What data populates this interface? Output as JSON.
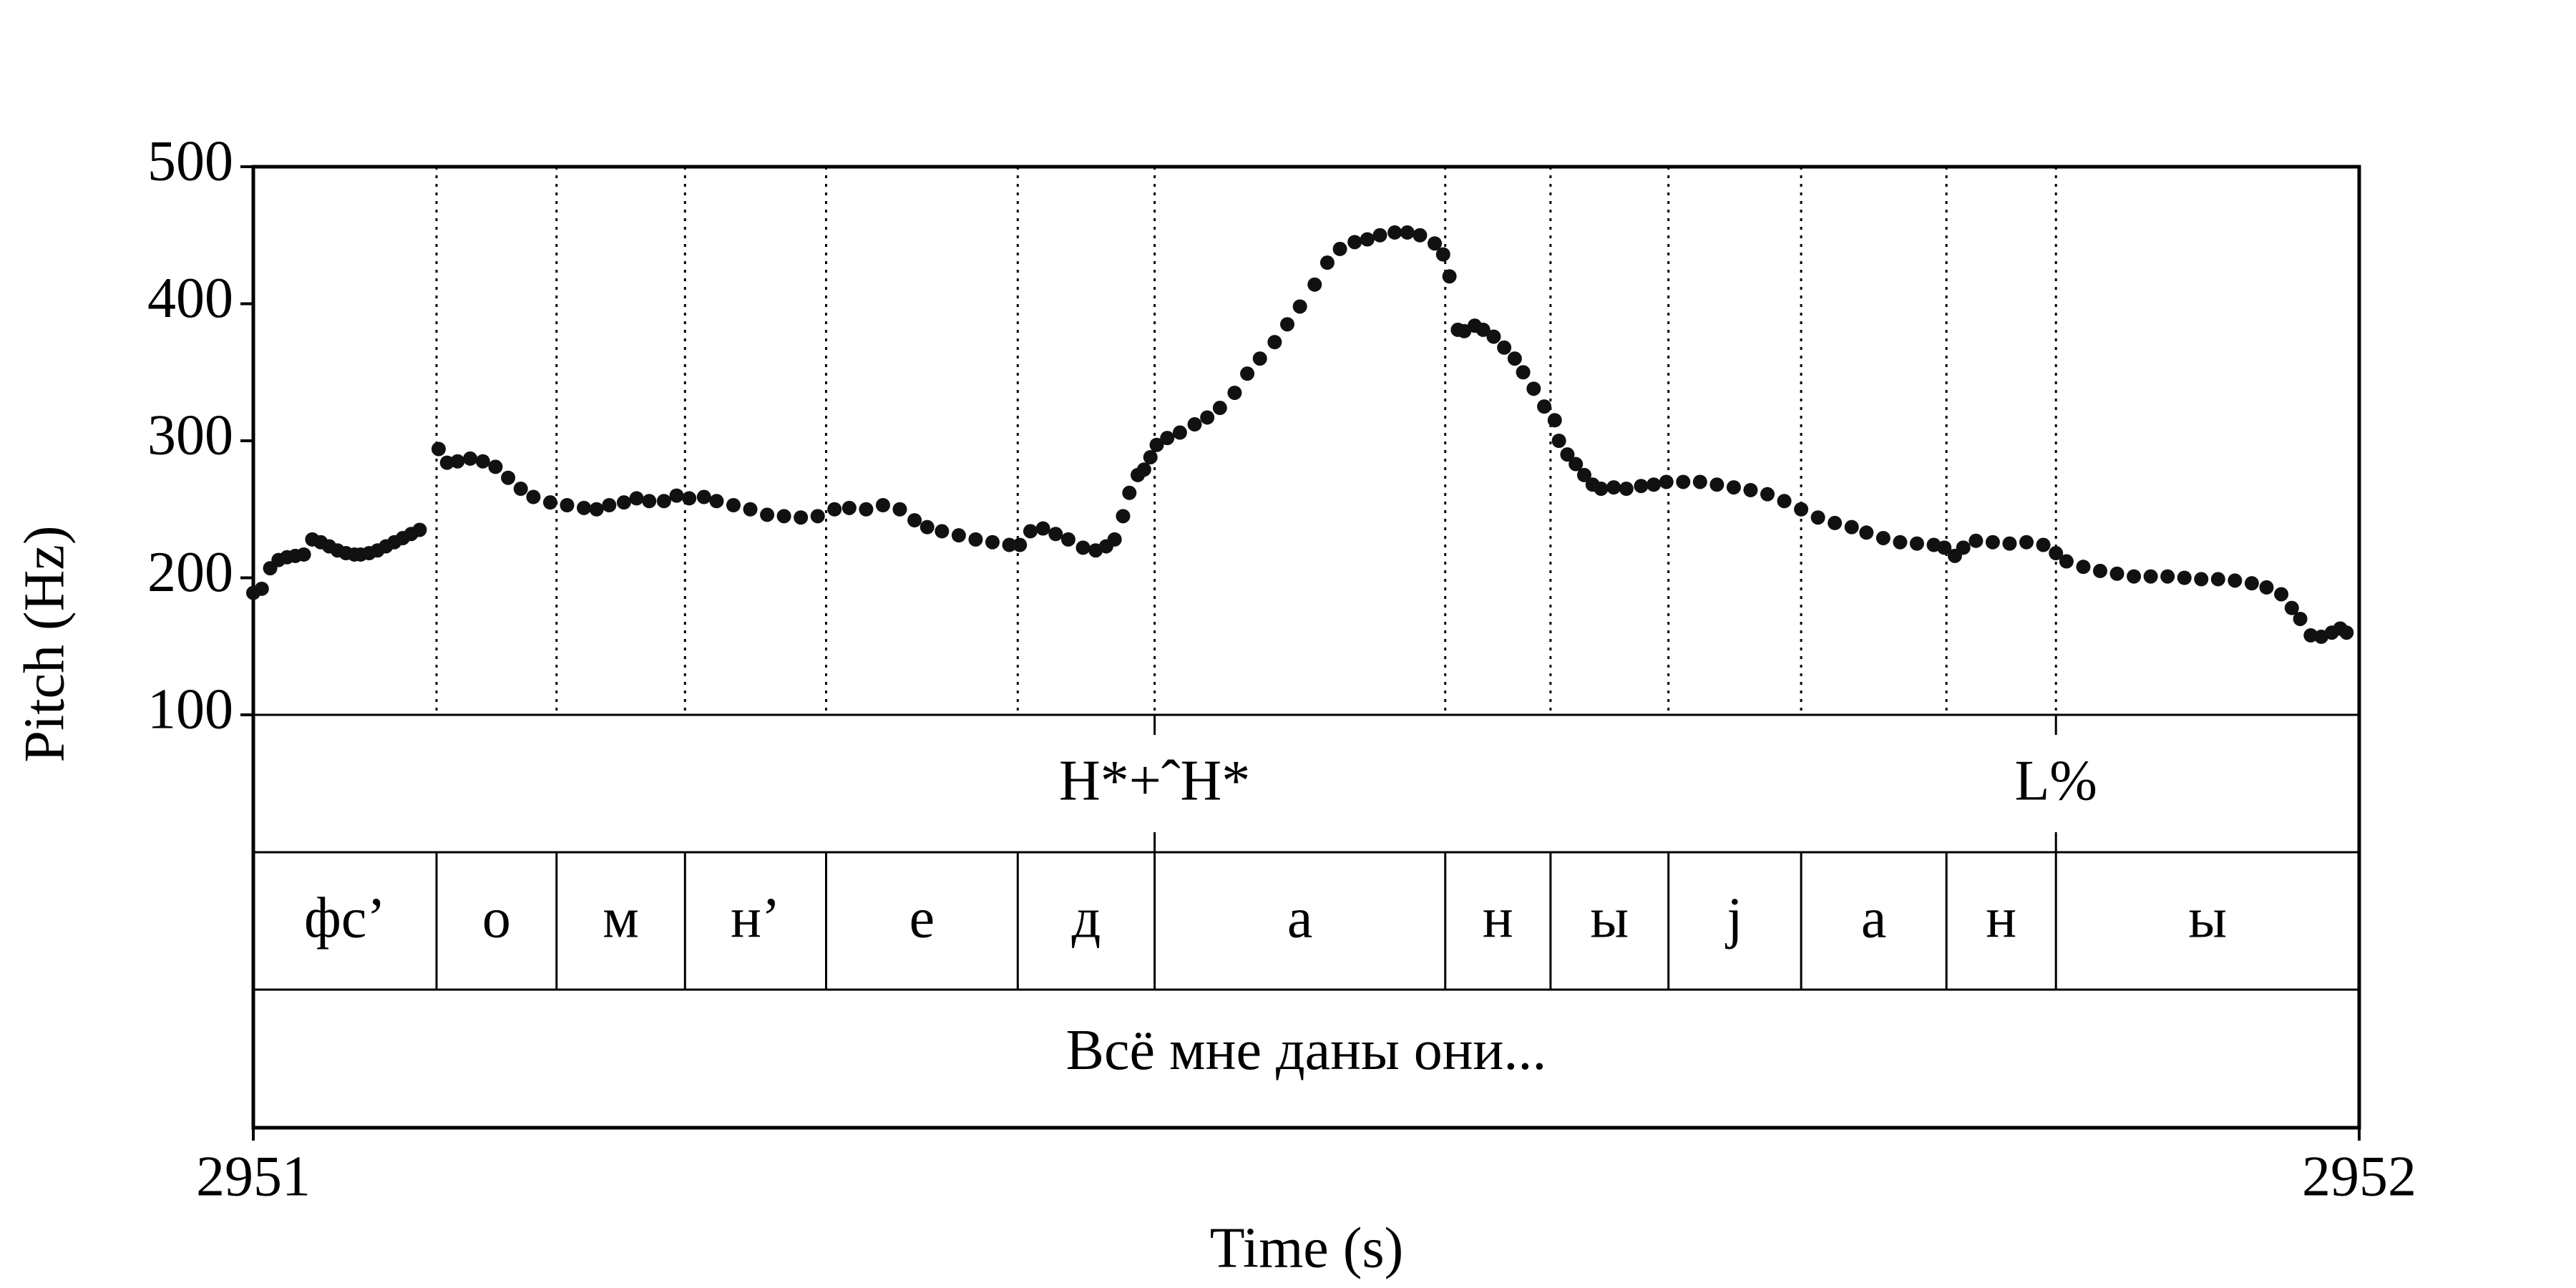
{
  "chart_data": {
    "type": "scatter",
    "y_label": "Pitch (Hz)",
    "x_label": "Time (s)",
    "xlim": [
      2951,
      2952
    ],
    "xticks": [
      2951,
      2952
    ],
    "ylim": [
      100,
      500
    ],
    "yticks": [
      100,
      200,
      300,
      400,
      500
    ],
    "color": "#111111",
    "x": [
      2951.0,
      2951.004,
      2951.008,
      2951.012,
      2951.016,
      2951.02,
      2951.024,
      2951.028,
      2951.032,
      2951.036,
      2951.04,
      2951.044,
      2951.048,
      2951.051,
      2951.055,
      2951.059,
      2951.063,
      2951.067,
      2951.071,
      2951.075,
      2951.079,
      2951.088,
      2951.092,
      2951.097,
      2951.103,
      2951.109,
      2951.115,
      2951.121,
      2951.127,
      2951.133,
      2951.141,
      2951.149,
      2951.157,
      2951.163,
      2951.169,
      2951.176,
      2951.182,
      2951.188,
      2951.195,
      2951.201,
      2951.207,
      2951.214,
      2951.22,
      2951.228,
      2951.236,
      2951.244,
      2951.252,
      2951.26,
      2951.268,
      2951.276,
      2951.283,
      2951.291,
      2951.299,
      2951.307,
      2951.314,
      2951.32,
      2951.327,
      2951.335,
      2951.343,
      2951.351,
      2951.359,
      2951.364,
      2951.369,
      2951.375,
      2951.381,
      2951.387,
      2951.394,
      2951.4,
      2951.405,
      2951.409,
      2951.413,
      2951.416,
      2951.42,
      2951.423,
      2951.426,
      2951.429,
      2951.434,
      2951.44,
      2951.447,
      2951.453,
      2951.459,
      2951.466,
      2951.472,
      2951.478,
      2951.485,
      2951.491,
      2951.497,
      2951.504,
      2951.51,
      2951.516,
      2951.523,
      2951.529,
      2951.535,
      2951.542,
      2951.548,
      2951.554,
      2951.561,
      2951.565,
      2951.568,
      2951.572,
      2951.575,
      2951.58,
      2951.584,
      2951.589,
      2951.594,
      2951.599,
      2951.603,
      2951.608,
      2951.613,
      2951.618,
      2951.62,
      2951.624,
      2951.628,
      2951.632,
      2951.636,
      2951.64,
      2951.646,
      2951.652,
      2951.659,
      2951.665,
      2951.671,
      2951.679,
      2951.687,
      2951.695,
      2951.703,
      2951.711,
      2951.719,
      2951.727,
      2951.735,
      2951.743,
      2951.751,
      2951.759,
      2951.766,
      2951.774,
      2951.782,
      2951.79,
      2951.798,
      2951.803,
      2951.808,
      2951.812,
      2951.818,
      2951.826,
      2951.834,
      2951.842,
      2951.85,
      2951.856,
      2951.861,
      2951.869,
      2951.877,
      2951.885,
      2951.893,
      2951.901,
      2951.909,
      2951.917,
      2951.925,
      2951.933,
      2951.941,
      2951.949,
      2951.956,
      2951.963,
      2951.968,
      2951.972,
      2951.977,
      2951.982,
      2951.987,
      2951.991,
      2951.994
    ],
    "values": [
      189,
      192,
      207,
      213,
      215,
      216,
      217,
      228,
      226,
      223,
      220,
      218,
      217,
      217,
      218,
      220,
      223,
      226,
      229,
      232,
      235,
      294,
      284,
      285,
      287,
      285,
      281,
      273,
      265,
      259,
      255,
      253,
      251,
      250,
      253,
      255,
      258,
      256,
      256,
      260,
      258,
      259,
      256,
      253,
      250,
      246,
      245,
      244,
      245,
      250,
      251,
      250,
      253,
      250,
      242,
      237,
      234,
      231,
      228,
      226,
      224,
      224,
      234,
      236,
      232,
      228,
      222,
      220,
      223,
      228,
      245,
      262,
      275,
      279,
      288,
      297,
      302,
      306,
      312,
      317,
      324,
      335,
      349,
      360,
      372,
      385,
      398,
      414,
      430,
      440,
      445,
      447,
      450,
      452,
      452,
      450,
      444,
      436,
      420,
      381,
      380,
      384,
      381,
      376,
      368,
      360,
      350,
      338,
      325,
      315,
      300,
      290,
      283,
      275,
      268,
      265,
      266,
      265,
      267,
      268,
      270,
      270,
      270,
      268,
      266,
      264,
      261,
      256,
      250,
      244,
      240,
      237,
      233,
      229,
      226,
      225,
      224,
      222,
      216,
      222,
      227,
      226,
      225,
      226,
      224,
      218,
      212,
      208,
      205,
      203,
      201,
      201,
      201,
      200,
      199,
      199,
      198,
      196,
      193,
      188,
      178,
      170,
      158,
      157,
      160,
      163,
      160
    ],
    "tone_tier": {
      "times": [
        2951.428,
        2951.856
      ],
      "labels": [
        "H*+ˆH*",
        "L%"
      ]
    },
    "segment_tier": {
      "boundaries": [
        2951,
        2951.087,
        2951.144,
        2951.205,
        2951.272,
        2951.363,
        2951.428,
        2951.566,
        2951.616,
        2951.672,
        2951.735,
        2951.804,
        2951.856,
        2952
      ],
      "labels": [
        "фс’",
        "о",
        "м",
        "н’",
        "е",
        "д",
        "а",
        "н",
        "ы",
        "j",
        "а",
        "н",
        "ы"
      ]
    },
    "sentence_tier": {
      "label": "Всё мне даны они..."
    }
  }
}
